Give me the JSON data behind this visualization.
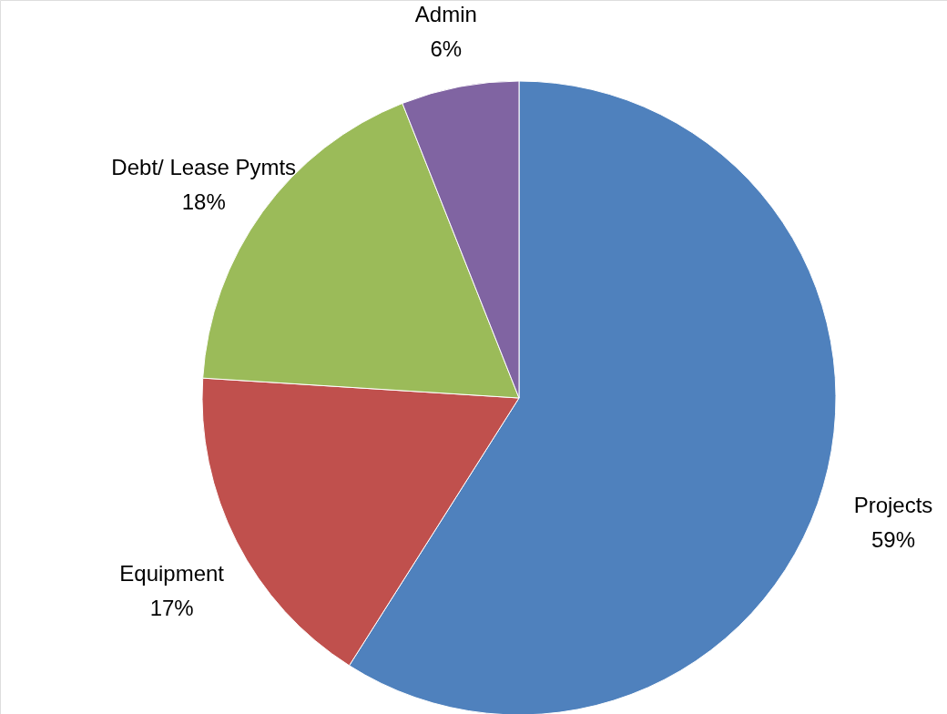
{
  "chart_data": {
    "type": "pie",
    "categories": [
      "Projects",
      "Equipment",
      "Debt/ Lease Pymts",
      "Admin"
    ],
    "values": [
      59,
      17,
      18,
      6
    ],
    "value_labels": [
      "59%",
      "17%",
      "18%",
      "6%"
    ],
    "colors": [
      "#4f81bd",
      "#c0504d",
      "#9bbb59",
      "#8064a2"
    ]
  }
}
